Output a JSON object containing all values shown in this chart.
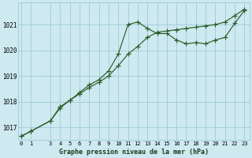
{
  "bg_color": "#cee9f0",
  "grid_color": "#9eccd8",
  "line_color": "#2a5e2a",
  "x_label_bottom": "Graphe pression niveau de la mer (hPa)",
  "x_ticks": [
    0,
    1,
    3,
    4,
    5,
    6,
    7,
    8,
    9,
    10,
    11,
    12,
    13,
    14,
    15,
    16,
    17,
    18,
    19,
    20,
    21,
    22,
    23
  ],
  "xlim": [
    -0.3,
    23.5
  ],
  "ylim": [
    1016.5,
    1021.85
  ],
  "y_ticks": [
    1017,
    1018,
    1019,
    1020,
    1021
  ],
  "series1_x": [
    0,
    1,
    3,
    4,
    5,
    6,
    7,
    8,
    9,
    10,
    11,
    12,
    13,
    14,
    15,
    16,
    17,
    18,
    19,
    20,
    21,
    22,
    23
  ],
  "series1_y": [
    1016.65,
    1016.85,
    1017.25,
    1017.75,
    1018.05,
    1018.35,
    1018.65,
    1018.85,
    1019.2,
    1019.85,
    1021.0,
    1021.1,
    1020.85,
    1020.65,
    1020.65,
    1020.4,
    1020.25,
    1020.3,
    1020.25,
    1020.4,
    1020.5,
    1021.05,
    1021.55
  ],
  "series2_x": [
    0,
    1,
    3,
    4,
    5,
    6,
    7,
    8,
    9,
    10,
    11,
    12,
    13,
    14,
    15,
    16,
    17,
    18,
    19,
    20,
    21,
    22,
    23
  ],
  "series2_y": [
    1016.65,
    1016.85,
    1017.25,
    1017.8,
    1018.05,
    1018.3,
    1018.55,
    1018.75,
    1019.0,
    1019.4,
    1019.85,
    1020.15,
    1020.5,
    1020.7,
    1020.75,
    1020.8,
    1020.85,
    1020.9,
    1020.95,
    1021.0,
    1021.1,
    1021.35,
    1021.6
  ]
}
